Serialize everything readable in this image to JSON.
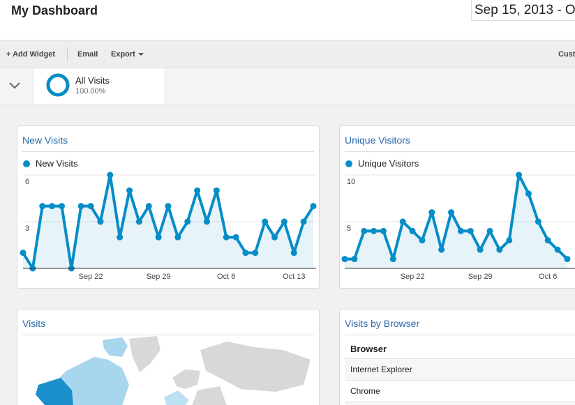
{
  "header": {
    "title": "My Dashboard",
    "date_range": "Sep 15, 2013 - Oc"
  },
  "toolbar": {
    "add_widget": "+ Add Widget",
    "email": "Email",
    "export": "Export",
    "customize": "Cust"
  },
  "segment": {
    "name": "All Visits",
    "share": "100.00%"
  },
  "chart_data": [
    {
      "type": "line",
      "title": "New Visits",
      "categories": [
        null,
        null,
        null,
        null,
        null,
        null,
        null,
        "Sep 22",
        null,
        null,
        null,
        null,
        null,
        null,
        "Sep 29",
        null,
        null,
        null,
        null,
        null,
        null,
        "Oct 6",
        null,
        null,
        null,
        null,
        null,
        null,
        "Oct 13",
        null,
        null
      ],
      "series": [
        {
          "name": "New Visits",
          "color": "#058dc7",
          "values": [
            1,
            0,
            4,
            4,
            4,
            0,
            4,
            4,
            3,
            6,
            2,
            5,
            3,
            4,
            2,
            4,
            2,
            3,
            5,
            3,
            5,
            2,
            2,
            1,
            1,
            3,
            2,
            3,
            1,
            3,
            4
          ]
        }
      ],
      "ylim": [
        0,
        6
      ],
      "yticks": [
        3,
        6
      ],
      "grid": true
    },
    {
      "type": "line",
      "title": "Unique Visitors",
      "categories": [
        null,
        null,
        null,
        null,
        null,
        null,
        null,
        "Sep 22",
        null,
        null,
        null,
        null,
        null,
        null,
        "Sep 29",
        null,
        null,
        null,
        null,
        null,
        null,
        "Oct 6",
        null,
        null
      ],
      "series": [
        {
          "name": "Unique Visitors",
          "color": "#058dc7",
          "values": [
            1,
            1,
            4,
            4,
            4,
            1,
            5,
            4,
            3,
            6,
            2,
            6,
            4,
            4,
            2,
            4,
            2,
            3,
            10,
            8,
            5,
            3,
            2,
            1
          ]
        }
      ],
      "ylim": [
        0,
        10
      ],
      "yticks": [
        5,
        10
      ],
      "grid": true
    }
  ],
  "map_widget": {
    "title": "Visits"
  },
  "table_widget": {
    "title": "Visits by Browser",
    "header": "Browser",
    "rows": [
      "Internet Explorer",
      "Chrome"
    ]
  }
}
